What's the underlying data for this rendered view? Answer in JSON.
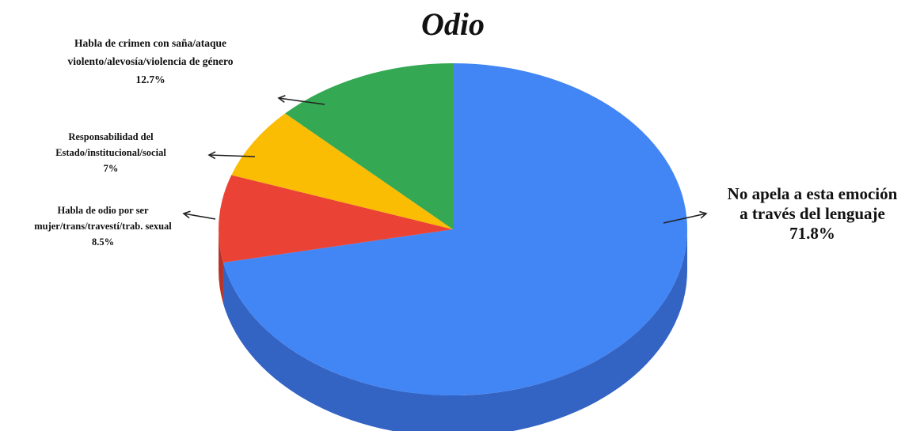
{
  "chart_data": {
    "type": "pie",
    "title": "Odio",
    "slices": [
      {
        "label_lines": [
          "No apela a esta emoción",
          "a través del lenguaje"
        ],
        "value_label": "71.8%",
        "value": 71.8,
        "color": "#4285f4",
        "side_color": "#3364c4"
      },
      {
        "label_lines": [
          "Habla de odio por ser",
          "mujer/trans/travestí/trab. sexual"
        ],
        "value_label": "8.5%",
        "value": 8.5,
        "color": "#ea4335",
        "side_color": "#b8342a"
      },
      {
        "label_lines": [
          "Responsabilidad del",
          "Estado/institucional/social"
        ],
        "value_label": "7%",
        "value": 7,
        "color": "#fbbc04",
        "side_color": "#c99503"
      },
      {
        "label_lines": [
          "Habla de crimen con saña/ataque",
          "violento/alevosía/violencia de género"
        ],
        "value_label": "12.7%",
        "value": 12.7,
        "color": "#34a853",
        "side_color": "#2a8743"
      }
    ]
  }
}
